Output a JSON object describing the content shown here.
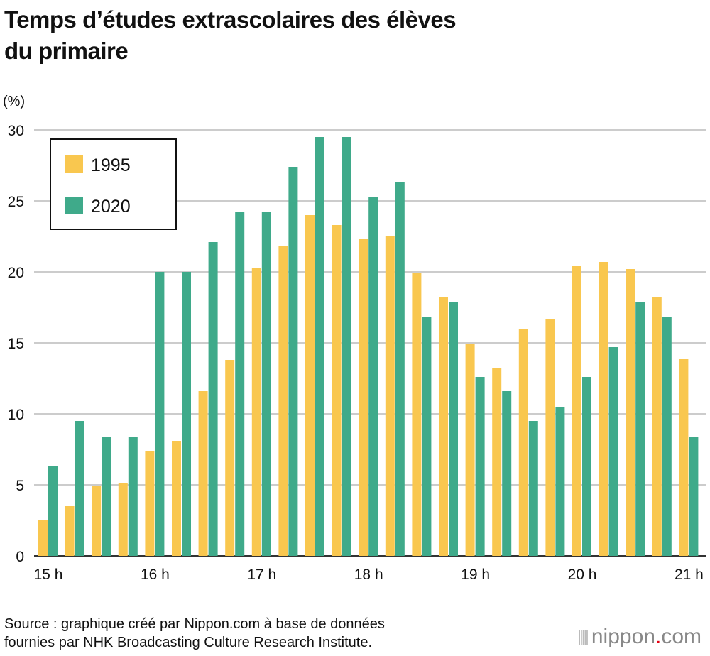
{
  "title_line1": "Temps d’études extrascolaires des élèves",
  "title_line2": "du primaire",
  "source_line1": "Source : graphique créé par Nippon.com à base de données",
  "source_line2": "fournies par NHK Broadcasting Culture Research Institute.",
  "logo": {
    "name": "nippon",
    "dot": ".",
    "suffix": "com"
  },
  "chart_data": {
    "type": "bar",
    "ylabel": "(%)",
    "ylim": [
      0,
      30
    ],
    "yticks": [
      0,
      5,
      10,
      15,
      20,
      25,
      30
    ],
    "grid": true,
    "legend": "top-left",
    "x_tick_labels": [
      "15 h",
      "16 h",
      "17 h",
      "18 h",
      "19 h",
      "20 h",
      "21 h"
    ],
    "categories": [
      "15:00",
      "15:15",
      "15:30",
      "15:45",
      "16:00",
      "16:15",
      "16:30",
      "16:45",
      "17:00",
      "17:15",
      "17:30",
      "17:45",
      "18:00",
      "18:15",
      "18:30",
      "18:45",
      "19:00",
      "19:15",
      "19:30",
      "19:45",
      "20:00",
      "20:15",
      "20:30",
      "20:45",
      "21:00"
    ],
    "series": [
      {
        "name": "1995",
        "color": "#f9c74f",
        "values": [
          2.5,
          3.5,
          4.9,
          5.1,
          7.4,
          8.1,
          11.6,
          13.8,
          20.3,
          21.8,
          24.0,
          23.3,
          22.3,
          22.5,
          19.9,
          18.2,
          14.9,
          13.2,
          16.0,
          16.7,
          20.4,
          20.7,
          20.2,
          18.2,
          13.9
        ]
      },
      {
        "name": "2020",
        "color": "#3faa8a",
        "values": [
          6.3,
          9.5,
          8.4,
          8.4,
          20.0,
          20.0,
          22.1,
          24.2,
          24.2,
          27.4,
          29.5,
          29.5,
          25.3,
          26.3,
          16.8,
          17.9,
          12.6,
          11.6,
          9.5,
          10.5,
          12.6,
          14.7,
          17.9,
          16.8,
          8.4
        ]
      }
    ]
  }
}
